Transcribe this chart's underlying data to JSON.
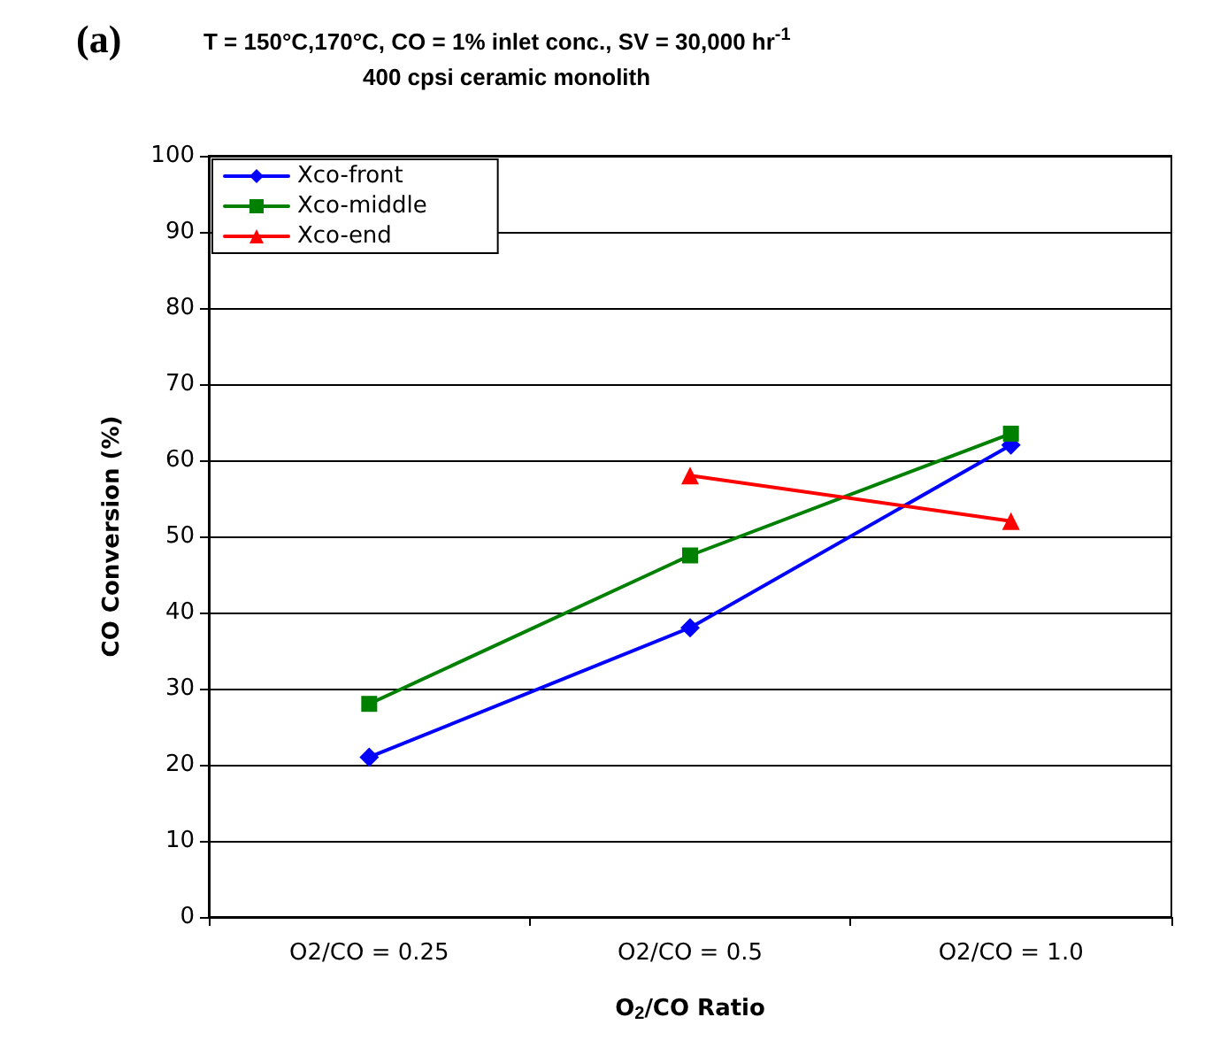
{
  "chart_data": {
    "type": "line",
    "title": "T = 150°C,170°C, CO = 1% inlet conc., SV = 30,000 hr$^{-1}$",
    "subtitle": "400 cpsi ceramic monolith",
    "annotations": [
      "(a)"
    ],
    "xlabel": "O$_{2}$/CO Ratio",
    "ylabel": "CO Conversion (%)",
    "categories": [
      "O2/CO = 0.25",
      "O2/CO = 0.5",
      "O2/CO = 1.0"
    ],
    "series": [
      {
        "name": "Xco-front",
        "color": "#0000ff",
        "marker": "diamond",
        "values": [
          21,
          38,
          62
        ]
      },
      {
        "name": "Xco-middle",
        "color": "#008000",
        "marker": "square",
        "values": [
          28,
          47.5,
          63.5
        ]
      },
      {
        "name": "Xco-end",
        "color": "#ff0000",
        "marker": "triangle",
        "values": [
          null,
          58,
          52
        ]
      }
    ],
    "ylim": [
      0,
      100
    ],
    "yticks": [
      0,
      10,
      20,
      30,
      40,
      50,
      60,
      70,
      80,
      90,
      100
    ],
    "grid": "y",
    "legend": "top left",
    "line_style": "solid"
  }
}
